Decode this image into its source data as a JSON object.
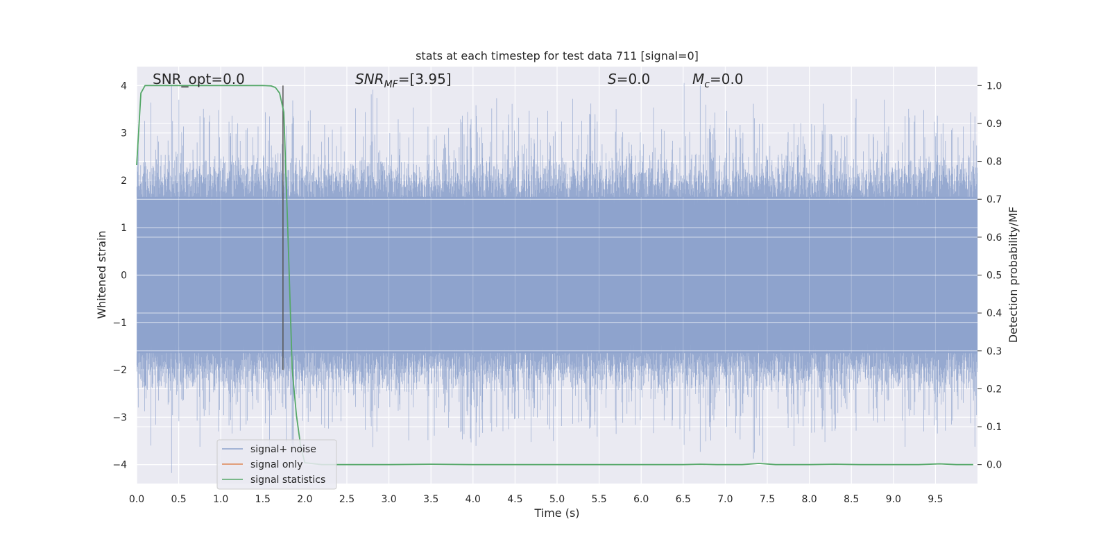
{
  "chart_data": {
    "type": "line",
    "title": "stats at each timestep for test data 711 [signal=0]",
    "xlabel": "Time (s)",
    "ylabel_left": "Whitened strain",
    "ylabel_right": "Detection probability/MF",
    "xlim": [
      0.0,
      10.0
    ],
    "ylim_left": [
      -4.4,
      4.4
    ],
    "ylim_right": [
      -0.05,
      1.05
    ],
    "x_ticks": [
      0.0,
      0.5,
      1.0,
      1.5,
      2.0,
      2.5,
      3.0,
      3.5,
      4.0,
      4.5,
      5.0,
      5.5,
      6.0,
      6.5,
      7.0,
      7.5,
      8.0,
      8.5,
      9.0,
      9.5
    ],
    "x_tick_labels": [
      "0.0",
      "0.5",
      "1.0",
      "1.5",
      "2.0",
      "2.5",
      "3.0",
      "3.5",
      "4.0",
      "4.5",
      "5.0",
      "5.5",
      "6.0",
      "6.5",
      "7.0",
      "7.5",
      "8.0",
      "8.5",
      "9.0",
      "9.5"
    ],
    "y_left_ticks": [
      -4,
      -3,
      -2,
      -1,
      0,
      1,
      2,
      3,
      4
    ],
    "y_left_tick_labels": [
      "−4",
      "−3",
      "−2",
      "−1",
      "0",
      "1",
      "2",
      "3",
      "4"
    ],
    "y_right_ticks": [
      0.0,
      0.1,
      0.2,
      0.3,
      0.4,
      0.5,
      0.6,
      0.7,
      0.8,
      0.9,
      1.0
    ],
    "y_right_tick_labels": [
      "0.0",
      "0.1",
      "0.2",
      "0.3",
      "0.4",
      "0.5",
      "0.6",
      "0.7",
      "0.8",
      "0.9",
      "1.0"
    ],
    "grid": true,
    "legend_position": "lower-left",
    "series": [
      {
        "name": "signal+ noise",
        "axis": "left",
        "color": "#8da2cc",
        "style": "dense noise trace",
        "amplitude_typical": 2.0,
        "amplitude_max": 4.0,
        "min_observed": -4.05,
        "max_observed": 4.0
      },
      {
        "name": "signal only",
        "axis": "left",
        "color": "#dd8452",
        "x": [
          0.0,
          10.0
        ],
        "y": [
          0.0,
          0.0
        ]
      },
      {
        "name": "signal statistics",
        "axis": "right",
        "color": "#55a868",
        "x": [
          0.0,
          0.05,
          0.1,
          0.3,
          0.6,
          0.9,
          1.2,
          1.5,
          1.6,
          1.65,
          1.7,
          1.75,
          1.8,
          1.85,
          1.9,
          1.95,
          2.0,
          2.2,
          2.5,
          3.0,
          3.5,
          4.0,
          4.5,
          5.0,
          5.5,
          6.0,
          6.5,
          6.7,
          6.9,
          7.2,
          7.4,
          7.6,
          8.0,
          8.3,
          8.6,
          9.0,
          9.3,
          9.55,
          9.75,
          9.95
        ],
        "y": [
          0.79,
          0.98,
          1.0,
          1.0,
          1.0,
          1.0,
          1.0,
          1.0,
          0.999,
          0.995,
          0.98,
          0.93,
          0.6,
          0.25,
          0.13,
          0.05,
          0.005,
          0.0,
          0.0,
          0.0,
          0.001,
          0.0,
          0.0,
          0.0,
          0.0,
          0.0,
          0.0,
          0.001,
          0.0,
          0.0,
          0.003,
          0.0,
          0.0,
          0.001,
          0.0,
          0.0,
          0.0,
          0.002,
          0.0,
          0.0
        ]
      }
    ],
    "vertical_line": {
      "x": 1.74,
      "color": "#555555"
    },
    "annotations": [
      {
        "name": "snr-opt",
        "text": "SNR_opt=0.0"
      },
      {
        "name": "snr-mf",
        "base": "SNR",
        "sub": "MF",
        "rest": "=[3.95]"
      },
      {
        "name": "s-stat",
        "base": "S",
        "sub": "",
        "rest": "=0.0"
      },
      {
        "name": "chirp-mass",
        "base": "M",
        "sub": "c",
        "rest": "=0.0"
      }
    ]
  },
  "colors": {
    "plot_bg": "#eaeaf2",
    "grid": "#ffffff",
    "noise": "#8da2cc",
    "signal_only": "#dd8452",
    "statistics": "#55a868",
    "vline": "#555555"
  }
}
